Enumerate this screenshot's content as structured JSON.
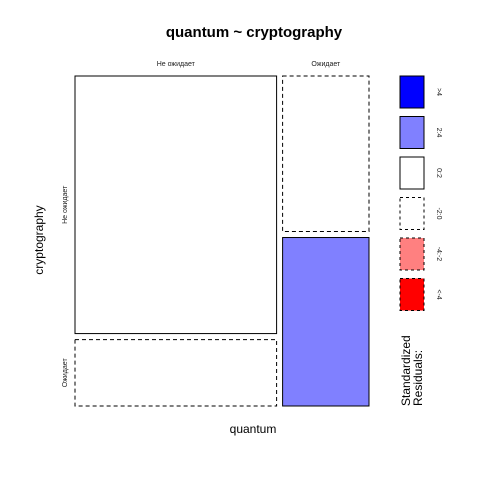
{
  "chart_data": {
    "type": "mosaic",
    "title": "quantum ~ cryptography",
    "xlabel": "quantum",
    "ylabel": "cryptography",
    "x_levels": [
      "Не ожидает",
      "Ожидает"
    ],
    "y_levels": [
      "Не ожидает",
      "Ожидает"
    ],
    "x_proportions": [
      0.7,
      0.3
    ],
    "conditional_y_proportions": [
      [
        0.795,
        0.205
      ],
      [
        0.48,
        0.52
      ]
    ],
    "cells": [
      {
        "x": "Не ожидает",
        "y": "Не ожидает",
        "residual_class": "0:2",
        "fill": "#ffffff",
        "dashed": false
      },
      {
        "x": "Не ожидает",
        "y": "Ожидает",
        "residual_class": "-2:0",
        "fill": "#ffffff",
        "dashed": true
      },
      {
        "x": "Ожидает",
        "y": "Не ожидает",
        "residual_class": "-2:0",
        "fill": "#ffffff",
        "dashed": true
      },
      {
        "x": "Ожидает",
        "y": "Ожидает",
        "residual_class": "2:4",
        "fill": "#8080ff",
        "dashed": false
      }
    ],
    "legend": {
      "title_lines": [
        "Standardized",
        "Residuals:"
      ],
      "placement": "right",
      "entries": [
        {
          "label": ">4",
          "fill": "#0000ff",
          "dashed": false
        },
        {
          "label": "2:4",
          "fill": "#8080ff",
          "dashed": false
        },
        {
          "label": "0:2",
          "fill": "#ffffff",
          "dashed": false
        },
        {
          "label": "-2:0",
          "fill": "#ffffff",
          "dashed": true
        },
        {
          "label": "-4:-2",
          "fill": "#ff8080",
          "dashed": true
        },
        {
          "label": "<-4",
          "fill": "#ff0000",
          "dashed": true
        }
      ]
    }
  }
}
